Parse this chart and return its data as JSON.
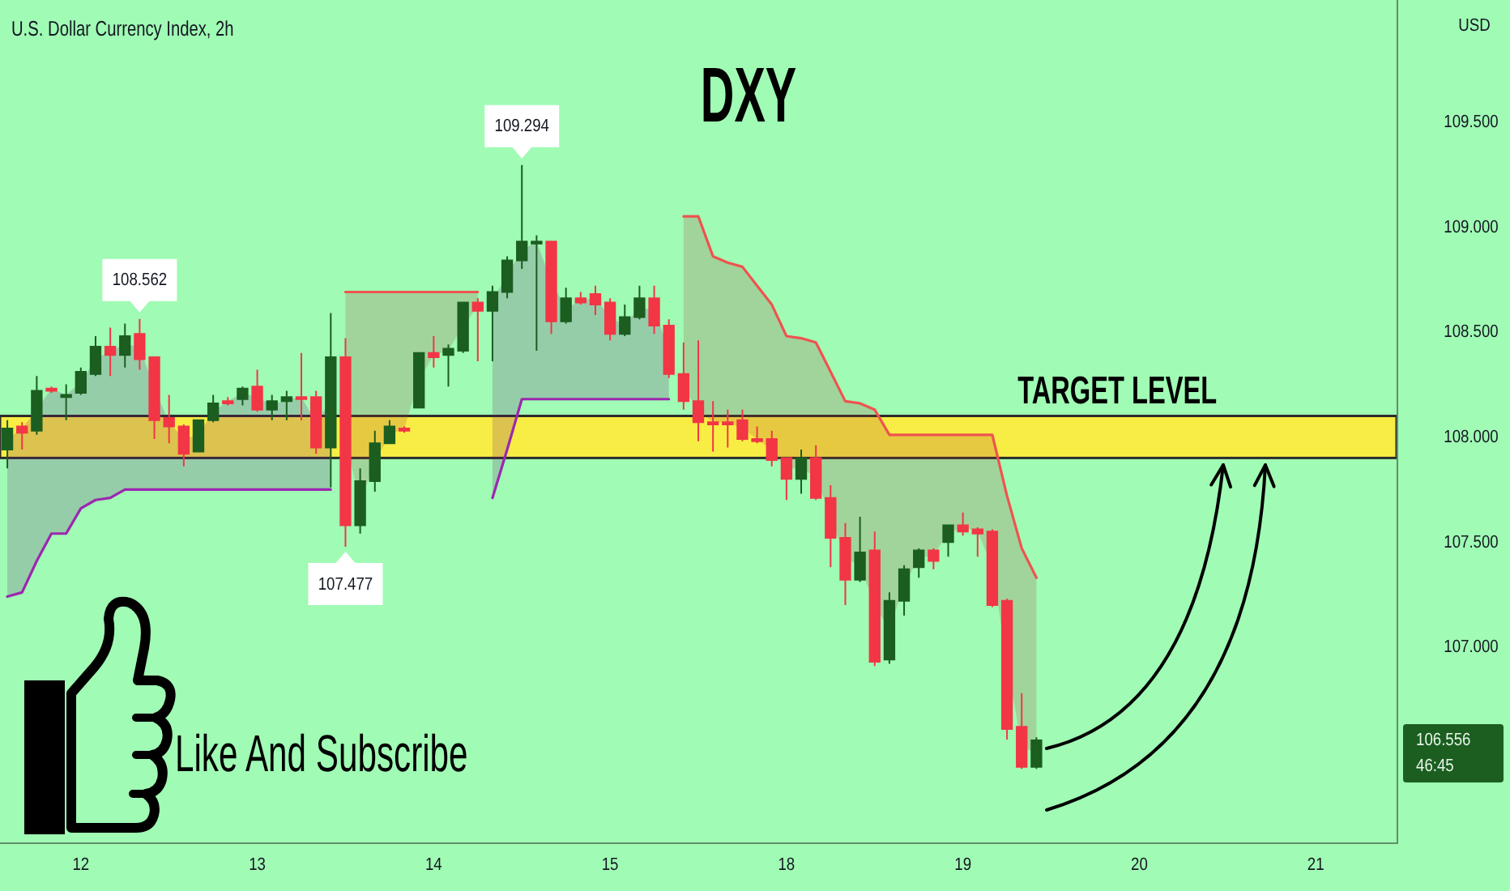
{
  "chart_data": {
    "type": "candlestick",
    "title": "DXY",
    "subtitle": "U.S. Dollar Currency Index, 2h",
    "ylabel": "USD",
    "categories": [
      null,
      null,
      null,
      null,
      null,
      "12",
      null,
      null,
      null,
      null,
      null,
      null,
      null,
      null,
      null,
      null,
      null,
      "13",
      null,
      null,
      null,
      null,
      null,
      null,
      null,
      null,
      null,
      null,
      null,
      "14",
      null,
      null,
      null,
      null,
      null,
      null,
      null,
      null,
      null,
      null,
      null,
      "15",
      null,
      null,
      null,
      null,
      null,
      null,
      null,
      null,
      null,
      null,
      null,
      "18",
      null,
      null,
      null,
      null,
      null,
      null,
      null,
      null,
      null,
      null,
      null,
      "19",
      null,
      null,
      null,
      null,
      null,
      null,
      null,
      null,
      null,
      null,
      null,
      "20",
      null,
      null,
      null,
      null,
      null,
      null,
      null,
      null,
      null,
      null,
      null,
      "21",
      null,
      null,
      null,
      null,
      null
    ],
    "ohlc": [
      [
        107.94,
        108.08,
        107.85,
        108.04
      ],
      [
        108.05,
        108.07,
        107.94,
        108.02
      ],
      [
        108.03,
        108.29,
        108.01,
        108.22
      ],
      [
        108.23,
        108.24,
        108.21,
        108.22
      ],
      [
        108.19,
        108.25,
        108.08,
        108.2
      ],
      [
        108.21,
        108.33,
        108.2,
        108.31
      ],
      [
        108.3,
        108.48,
        108.29,
        108.43
      ],
      [
        108.43,
        108.52,
        108.29,
        108.39
      ],
      [
        108.39,
        108.54,
        108.33,
        108.48
      ],
      [
        108.49,
        108.562,
        108.32,
        108.37
      ],
      [
        108.38,
        108.38,
        107.99,
        108.08
      ],
      [
        108.09,
        108.2,
        107.97,
        108.05
      ],
      [
        108.05,
        108.06,
        107.86,
        107.92
      ],
      [
        107.93,
        108.08,
        107.93,
        108.08
      ],
      [
        108.08,
        108.2,
        108.07,
        108.16
      ],
      [
        108.17,
        108.19,
        108.15,
        108.16
      ],
      [
        108.18,
        108.24,
        108.15,
        108.23
      ],
      [
        108.24,
        108.32,
        108.12,
        108.13
      ],
      [
        108.13,
        108.2,
        108.08,
        108.17
      ],
      [
        108.17,
        108.22,
        108.08,
        108.19
      ],
      [
        108.19,
        108.4,
        108.08,
        108.18
      ],
      [
        108.19,
        108.22,
        107.92,
        107.95
      ],
      [
        107.95,
        108.59,
        107.76,
        108.38
      ],
      [
        108.38,
        108.47,
        107.477,
        107.58
      ],
      [
        107.58,
        107.85,
        107.54,
        107.79
      ],
      [
        107.79,
        108.03,
        107.74,
        107.97
      ],
      [
        107.97,
        108.08,
        107.97,
        108.05
      ],
      [
        108.04,
        108.05,
        108.02,
        108.03
      ],
      [
        108.14,
        108.4,
        108.14,
        108.4
      ],
      [
        108.4,
        108.48,
        108.33,
        108.38
      ],
      [
        108.39,
        108.44,
        108.24,
        108.42
      ],
      [
        108.41,
        108.64,
        108.4,
        108.64
      ],
      [
        108.64,
        108.66,
        108.36,
        108.6
      ],
      [
        108.6,
        108.72,
        108.36,
        108.69
      ],
      [
        108.69,
        108.86,
        108.66,
        108.84
      ],
      [
        108.84,
        109.294,
        108.8,
        108.93
      ],
      [
        108.92,
        108.96,
        108.41,
        108.93
      ],
      [
        108.93,
        108.93,
        108.49,
        108.55
      ],
      [
        108.55,
        108.71,
        108.54,
        108.66
      ],
      [
        108.66,
        108.69,
        108.63,
        108.64
      ],
      [
        108.68,
        108.72,
        108.58,
        108.63
      ],
      [
        108.64,
        108.66,
        108.46,
        108.49
      ],
      [
        108.49,
        108.63,
        108.48,
        108.57
      ],
      [
        108.57,
        108.72,
        108.56,
        108.66
      ],
      [
        108.66,
        108.72,
        108.49,
        108.53
      ],
      [
        108.53,
        108.56,
        108.28,
        108.3
      ],
      [
        108.3,
        108.45,
        108.13,
        108.17
      ],
      [
        108.17,
        108.46,
        107.98,
        108.07
      ],
      [
        108.07,
        108.17,
        107.93,
        108.06
      ],
      [
        108.07,
        108.13,
        107.95,
        108.06
      ],
      [
        108.08,
        108.13,
        107.98,
        107.99
      ],
      [
        107.99,
        108.05,
        107.97,
        107.98
      ],
      [
        107.99,
        108.03,
        107.86,
        107.89
      ],
      [
        107.9,
        107.9,
        107.7,
        107.8
      ],
      [
        107.8,
        107.94,
        107.73,
        107.9
      ],
      [
        107.9,
        107.96,
        107.7,
        107.71
      ],
      [
        107.71,
        107.77,
        107.38,
        107.52
      ],
      [
        107.52,
        107.59,
        107.2,
        107.32
      ],
      [
        107.32,
        107.62,
        107.31,
        107.45
      ],
      [
        107.46,
        107.55,
        106.91,
        106.93
      ],
      [
        106.94,
        107.26,
        106.92,
        107.22
      ],
      [
        107.22,
        107.39,
        107.15,
        107.37
      ],
      [
        107.38,
        107.47,
        107.33,
        107.46
      ],
      [
        107.46,
        107.47,
        107.37,
        107.41
      ],
      [
        107.5,
        107.58,
        107.43,
        107.58
      ],
      [
        107.58,
        107.64,
        107.53,
        107.55
      ],
      [
        107.56,
        107.57,
        107.43,
        107.54
      ],
      [
        107.55,
        107.56,
        107.19,
        107.2
      ],
      [
        107.22,
        107.23,
        106.56,
        106.61
      ],
      [
        106.62,
        106.78,
        106.42,
        106.43
      ],
      [
        106.43,
        106.57,
        106.42,
        106.556
      ],
      null,
      null,
      null,
      null,
      null,
      null,
      null,
      null,
      null,
      null,
      null,
      null,
      null,
      null,
      null,
      null,
      null,
      null,
      null,
      null,
      null,
      null,
      null,
      null
    ],
    "colors": [
      "#1b5e20",
      "#f23645",
      "#1b5e20",
      "#f23645",
      "#1b5e20",
      "#1b5e20",
      "#1b5e20",
      "#f23645",
      "#1b5e20",
      "#f23645",
      "#f23645",
      "#f23645",
      "#f23645",
      "#1b5e20",
      "#1b5e20",
      "#f23645",
      "#1b5e20",
      "#f23645",
      "#1b5e20",
      "#1b5e20",
      "#f23645",
      "#f23645",
      "#1b5e20",
      "#f23645",
      "#1b5e20",
      "#1b5e20",
      "#1b5e20",
      "#f23645",
      "#1b5e20",
      "#f23645",
      "#1b5e20",
      "#1b5e20",
      "#f23645",
      "#1b5e20",
      "#1b5e20",
      "#1b5e20",
      "#1b5e20",
      "#f23645",
      "#1b5e20",
      "#f23645",
      "#f23645",
      "#f23645",
      "#1b5e20",
      "#1b5e20",
      "#f23645",
      "#f23645",
      "#f23645",
      "#f23645",
      "#f23645",
      "#f23645",
      "#f23645",
      "#f23645",
      "#f23645",
      "#f23645",
      "#1b5e20",
      "#f23645",
      "#f23645",
      "#f23645",
      "#1b5e20",
      "#f23645",
      "#1b5e20",
      "#1b5e20",
      "#1b5e20",
      "#f23645",
      "#1b5e20",
      "#f23645",
      "#f23645",
      "#f23645",
      "#f23645",
      "#f23645",
      "#1b5e20",
      null,
      null,
      null,
      null,
      null,
      null,
      null,
      null,
      null,
      null,
      null,
      null,
      null,
      null,
      null,
      null,
      null,
      null,
      null,
      null,
      null,
      null,
      null,
      null
    ],
    "series": [
      {
        "type": "line",
        "color": "#9c27b0",
        "values": [
          107.24,
          107.26,
          107.41,
          107.54,
          107.54,
          107.66,
          107.7,
          107.71,
          107.75,
          107.75,
          107.75,
          107.75,
          107.75,
          107.75,
          107.75,
          107.75,
          107.75,
          107.75,
          107.75,
          107.75,
          107.75,
          107.75,
          107.75,
          null,
          null,
          null,
          null,
          null,
          null,
          null,
          null,
          null,
          null,
          107.71,
          107.94,
          108.18,
          108.18,
          108.18,
          108.18,
          108.18,
          108.18,
          108.18,
          108.18,
          108.18,
          108.18,
          108.18,
          null,
          null,
          null,
          null,
          null,
          null,
          null,
          null,
          null,
          null,
          null,
          null,
          null,
          null,
          null,
          null,
          null,
          null,
          null,
          null,
          null,
          null,
          null,
          null,
          null,
          null,
          null,
          null,
          null,
          null,
          null,
          null,
          null,
          null,
          null,
          null,
          null,
          null,
          null,
          null,
          null,
          null,
          null,
          null,
          null,
          null,
          null,
          null,
          null
        ],
        "lower": [
          107.24,
          107.26,
          107.41,
          107.54,
          107.54,
          107.66,
          107.7,
          107.71,
          107.75,
          107.75,
          107.75,
          107.75,
          107.75,
          107.75,
          107.75,
          107.75,
          107.75,
          107.75,
          107.75,
          107.75,
          107.75,
          107.75,
          107.75,
          null,
          null,
          null,
          null,
          null,
          null,
          null,
          null,
          null,
          null,
          107.71,
          107.94,
          108.18,
          108.18,
          108.18,
          108.18,
          108.18,
          108.18,
          108.18,
          108.18,
          108.18,
          108.18,
          108.18,
          null,
          null,
          null,
          null,
          null,
          null,
          null,
          null,
          null,
          null,
          null,
          null,
          null,
          null,
          null,
          null,
          null,
          null,
          null,
          null,
          null,
          null,
          null,
          null,
          null,
          null,
          null,
          null,
          null,
          null,
          null,
          null,
          null,
          null,
          null,
          null,
          null,
          null,
          null,
          null,
          null,
          null,
          null,
          null,
          null,
          null,
          null,
          null,
          null
        ],
        "upper": [
          107.99,
          108.04,
          108.13,
          108.23,
          108.2,
          108.26,
          108.37,
          108.41,
          108.44,
          108.43,
          108.23,
          108.07,
          107.99,
          108.01,
          108.12,
          108.17,
          108.21,
          108.19,
          108.15,
          108.18,
          108.19,
          108.07,
          108.17,
          null,
          null,
          null,
          null,
          null,
          null,
          null,
          null,
          null,
          null,
          108.65,
          108.77,
          108.89,
          108.93,
          108.74,
          108.61,
          108.65,
          108.66,
          108.57,
          108.53,
          108.62,
          108.6,
          108.42,
          null,
          null,
          null,
          null,
          null,
          null,
          null,
          null,
          null,
          null,
          null,
          null,
          null,
          null,
          null,
          null,
          null,
          null,
          null,
          null,
          null,
          null,
          null,
          null,
          null,
          null,
          null,
          null,
          null,
          null,
          null,
          null,
          null,
          null,
          null,
          null,
          null,
          null,
          null,
          null,
          null,
          null,
          null,
          null,
          null,
          null,
          null,
          null,
          null
        ]
      },
      {
        "type": "line",
        "color": "#ef5350",
        "values": [
          null,
          null,
          null,
          null,
          null,
          null,
          null,
          null,
          null,
          null,
          null,
          null,
          null,
          null,
          null,
          null,
          null,
          null,
          null,
          null,
          null,
          null,
          null,
          108.69,
          108.69,
          108.69,
          108.69,
          108.69,
          108.69,
          108.69,
          108.69,
          108.69,
          108.69,
          null,
          null,
          null,
          null,
          null,
          null,
          null,
          null,
          null,
          null,
          null,
          null,
          null,
          109.05,
          109.05,
          108.86,
          108.83,
          108.81,
          108.72,
          108.63,
          108.48,
          108.47,
          108.45,
          108.31,
          108.17,
          108.16,
          108.13,
          108.01,
          108.01,
          108.01,
          108.01,
          108.01,
          108.01,
          108.01,
          108.01,
          107.72,
          107.47,
          107.33,
          null,
          null,
          null,
          null,
          null,
          null,
          null,
          null,
          null,
          null,
          null,
          null,
          null,
          null,
          null,
          null,
          null,
          null,
          null,
          null,
          null,
          null,
          null,
          null
        ],
        "upper": [
          null,
          null,
          null,
          null,
          null,
          null,
          null,
          null,
          null,
          null,
          null,
          null,
          null,
          null,
          null,
          null,
          null,
          null,
          null,
          null,
          null,
          null,
          null,
          108.69,
          108.69,
          108.69,
          108.69,
          108.69,
          108.69,
          108.69,
          108.69,
          108.69,
          108.69,
          null,
          null,
          null,
          null,
          null,
          null,
          null,
          null,
          null,
          null,
          null,
          null,
          null,
          109.05,
          109.05,
          108.86,
          108.83,
          108.81,
          108.72,
          108.63,
          108.48,
          108.47,
          108.45,
          108.31,
          108.17,
          108.16,
          108.13,
          108.01,
          108.01,
          108.01,
          108.01,
          108.01,
          108.01,
          108.01,
          108.01,
          107.72,
          107.47,
          107.33,
          null,
          null,
          null,
          null,
          null,
          null,
          null,
          null,
          null,
          null,
          null,
          null,
          null,
          null,
          null,
          null,
          null,
          null,
          null,
          null,
          null,
          null,
          null,
          null
        ],
        "lower": [
          null,
          null,
          null,
          null,
          null,
          null,
          null,
          null,
          null,
          null,
          null,
          null,
          null,
          null,
          null,
          null,
          null,
          null,
          null,
          null,
          null,
          null,
          null,
          107.98,
          107.69,
          107.88,
          108.01,
          108.04,
          108.27,
          108.39,
          108.41,
          108.53,
          108.62,
          null,
          null,
          null,
          null,
          null,
          null,
          null,
          null,
          null,
          null,
          null,
          null,
          null,
          108.24,
          108.12,
          108.07,
          108.07,
          108.04,
          107.99,
          107.94,
          107.85,
          107.85,
          107.81,
          107.62,
          107.42,
          107.39,
          107.2,
          107.08,
          107.3,
          107.42,
          107.44,
          107.54,
          107.57,
          107.55,
          107.38,
          106.92,
          106.53,
          106.49,
          null,
          null,
          null,
          null,
          null,
          null,
          null,
          null,
          null,
          null,
          null,
          null,
          null,
          null,
          null,
          null,
          null,
          null,
          null,
          null,
          null,
          null,
          null,
          null
        ]
      }
    ],
    "bands": [
      {
        "axis": "y",
        "from": 107.9,
        "to": 108.1,
        "label": "TARGET LEVEL",
        "color": "#ffeb3b"
      }
    ],
    "annotations": [
      {
        "text": "108.562",
        "y": 108.562
      },
      {
        "text": "109.294",
        "y": 109.294
      },
      {
        "text": "107.477",
        "y": 107.477
      },
      "106.556\n46:45",
      "Like And Subscribe"
    ],
    "ylim": [
      106.07,
      110.08
    ],
    "yticks": [
      {
        "value": 107,
        "label": "107.000"
      },
      {
        "value": 107.5,
        "label": "107.500"
      },
      {
        "value": 108,
        "label": "108.000"
      },
      {
        "value": 108.5,
        "label": "108.500"
      },
      {
        "value": 109,
        "label": "109.000"
      },
      {
        "value": 109.5,
        "label": "109.500"
      }
    ]
  }
}
